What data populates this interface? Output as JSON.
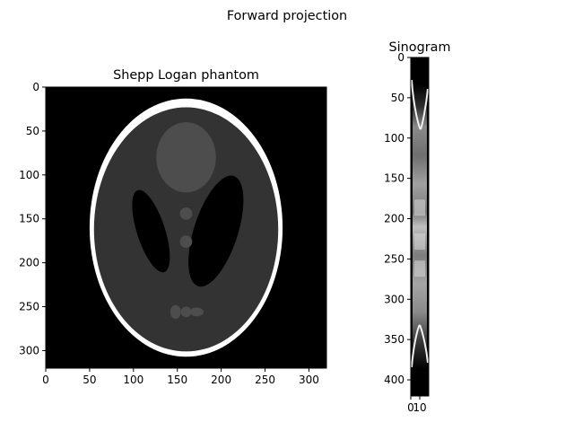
{
  "figure": {
    "suptitle": "Forward projection"
  },
  "chart_data": [
    {
      "type": "heatmap",
      "title": "Shepp Logan phantom",
      "xlabel": "",
      "ylabel": "",
      "colormap": "gray",
      "image_shape": [
        320,
        320
      ],
      "xlim": [
        0,
        320
      ],
      "ylim": [
        320,
        0
      ],
      "x_ticks": [
        0,
        50,
        100,
        150,
        200,
        250,
        300
      ],
      "y_ticks": [
        0,
        50,
        100,
        150,
        200,
        250,
        300
      ],
      "x_tick_labels": [
        "0",
        "50",
        "100",
        "150",
        "200",
        "250",
        "300"
      ],
      "y_tick_labels": [
        "0",
        "50",
        "100",
        "150",
        "200",
        "250",
        "300"
      ],
      "ellipses": [
        {
          "cx": 160,
          "cy": 160,
          "rx": 110,
          "ry": 147,
          "angle": 0,
          "intensity": 1.0
        },
        {
          "cx": 160,
          "cy": 162,
          "rx": 105,
          "ry": 139,
          "angle": 0,
          "intensity": 0.2
        },
        {
          "cx": 120,
          "cy": 164,
          "rx": 16,
          "ry": 49,
          "angle": -18,
          "intensity": 0.0
        },
        {
          "cx": 194,
          "cy": 164,
          "rx": 25,
          "ry": 66,
          "angle": 18,
          "intensity": 0.0
        },
        {
          "cx": 160,
          "cy": 80,
          "rx": 34,
          "ry": 40,
          "angle": 0,
          "intensity": 0.3
        },
        {
          "cx": 160,
          "cy": 144,
          "rx": 7,
          "ry": 7,
          "angle": 0,
          "intensity": 0.3
        },
        {
          "cx": 160,
          "cy": 176,
          "rx": 7,
          "ry": 7,
          "angle": 0,
          "intensity": 0.3
        },
        {
          "cx": 148,
          "cy": 256,
          "rx": 6,
          "ry": 8,
          "angle": 0,
          "intensity": 0.3
        },
        {
          "cx": 160,
          "cy": 256,
          "rx": 6,
          "ry": 6,
          "angle": 0,
          "intensity": 0.3
        },
        {
          "cx": 172,
          "cy": 256,
          "rx": 8,
          "ry": 5,
          "angle": 0,
          "intensity": 0.3
        }
      ]
    },
    {
      "type": "heatmap",
      "title": "Sinogram",
      "xlabel": "",
      "ylabel": "",
      "colormap": "gray",
      "image_shape": [
        420,
        20
      ],
      "xlim": [
        0,
        20
      ],
      "ylim": [
        420,
        0
      ],
      "x_ticks": [
        0,
        10
      ],
      "y_ticks": [
        0,
        50,
        100,
        150,
        200,
        250,
        300,
        350,
        400
      ],
      "x_tick_labels": [
        "0",
        "10"
      ],
      "y_tick_labels": [
        "0",
        "50",
        "100",
        "150",
        "200",
        "250",
        "300",
        "350",
        "400"
      ]
    }
  ]
}
